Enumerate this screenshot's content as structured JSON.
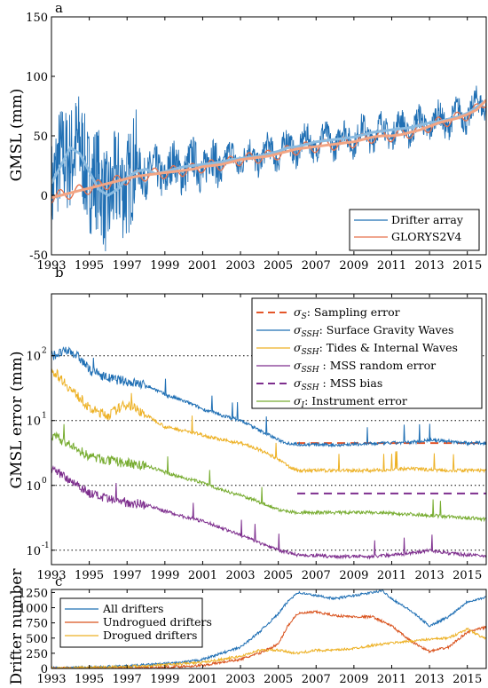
{
  "colors": {
    "drifter_blue": "#1f6fb4",
    "drifter_light": "#8bbbe0",
    "glorys_orange": "#e8704a",
    "glorys_light": "#f2a584",
    "sampling": "#e4562a",
    "ssh_waves": "#1f6fb4",
    "tides": "#edb125",
    "mss_random": "#7e2f8e",
    "mss_bias": "#7e2f8e",
    "instrument": "#77ac30",
    "all_drifters": "#1f6fb4",
    "undrogued": "#d9531e",
    "drogued": "#edb125"
  },
  "chart_data": [
    {
      "panel": "a",
      "type": "line",
      "ylabel": "GMSL (mm)",
      "xlim": [
        1993,
        2016
      ],
      "ylim": [
        -50,
        150
      ],
      "x_ticks": [
        "1993",
        "1995",
        "1997",
        "1999",
        "2001",
        "2003",
        "2005",
        "2007",
        "2009",
        "2011",
        "2013",
        "2015"
      ],
      "y_ticks": [
        "-50",
        "0",
        "50",
        "100",
        "150"
      ],
      "legend": [
        "Drifter array",
        "GLORYS2V4"
      ],
      "legend_position": "bottom-right",
      "series": [
        {
          "name": "Drifter array",
          "x": [
            1993.0,
            1993.5,
            1994.0,
            1994.5,
            1995.0,
            1995.5,
            1996.0,
            1996.5,
            1997.0,
            1997.5,
            1998.0,
            1998.5,
            1999.0,
            1999.5,
            2000.0,
            2000.5,
            2001.0,
            2001.5,
            2002.0,
            2002.5,
            2003.0,
            2003.5,
            2004.0,
            2004.5,
            2005.0,
            2005.5,
            2006.0,
            2006.5,
            2007.0,
            2007.5,
            2008.0,
            2008.5,
            2009.0,
            2009.5,
            2010.0,
            2010.5,
            2011.0,
            2011.5,
            2012.0,
            2012.5,
            2013.0,
            2013.5,
            2014.0,
            2014.5,
            2015.0,
            2015.5,
            2016.0
          ],
          "y": [
            10,
            25,
            40,
            35,
            20,
            5,
            0,
            5,
            15,
            20,
            22,
            18,
            20,
            22,
            24,
            25,
            26,
            27,
            28,
            30,
            31,
            32,
            33,
            35,
            37,
            40,
            41,
            43,
            45,
            46,
            47,
            48,
            49,
            51,
            53,
            54,
            55,
            56,
            57,
            59,
            61,
            62,
            64,
            66,
            69,
            74,
            80
          ]
        },
        {
          "name": "GLORYS2V4",
          "x": [
            1993.0,
            1993.5,
            1994.0,
            1994.5,
            1995.0,
            1995.5,
            1996.0,
            1996.5,
            1997.0,
            1997.5,
            1998.0,
            1998.5,
            1999.0,
            1999.5,
            2000.0,
            2000.5,
            2001.0,
            2001.5,
            2002.0,
            2002.5,
            2003.0,
            2003.5,
            2004.0,
            2004.5,
            2005.0,
            2005.5,
            2006.0,
            2006.5,
            2007.0,
            2007.5,
            2008.0,
            2008.5,
            2009.0,
            2009.5,
            2010.0,
            2010.5,
            2011.0,
            2011.5,
            2012.0,
            2012.5,
            2013.0,
            2013.5,
            2014.0,
            2014.5,
            2015.0,
            2015.5,
            2016.0
          ],
          "y": [
            -2,
            0,
            2,
            4,
            6,
            8,
            10,
            12,
            14,
            16,
            17,
            18,
            19,
            20,
            21,
            22,
            24,
            25,
            26,
            28,
            30,
            31,
            32,
            33,
            35,
            37,
            39,
            40,
            41,
            42,
            43,
            44,
            45,
            47,
            49,
            50,
            50,
            51,
            53,
            55,
            58,
            61,
            63,
            65,
            68,
            72,
            80
          ]
        }
      ]
    },
    {
      "panel": "b",
      "type": "line",
      "ylabel": "GMSL error (mm)",
      "yscale": "log",
      "xlim": [
        1993,
        2016
      ],
      "ylim": [
        0.06,
        900
      ],
      "x_ticks": [
        "1993",
        "1995",
        "1997",
        "1999",
        "2001",
        "2003",
        "2005",
        "2007",
        "2009",
        "2011",
        "2013",
        "2015"
      ],
      "y_ticks": [
        {
          "base": "10",
          "exp": "-1",
          "value": 0.1
        },
        {
          "base": "10",
          "exp": "0",
          "value": 1
        },
        {
          "base": "10",
          "exp": "1",
          "value": 10
        },
        {
          "base": "10",
          "exp": "2",
          "value": 100
        }
      ],
      "reference_lines": [
        0.1,
        1,
        10,
        100
      ],
      "legend": [
        {
          "sym": "σ",
          "sub": "S",
          "text": ": Sampling error"
        },
        {
          "sym": "σ",
          "sub": "SSH",
          "text": ": Surface Gravity Waves"
        },
        {
          "sym": "σ",
          "sub": "SSH",
          "text": ": Tides & Internal Waves"
        },
        {
          "sym": "σ",
          "sub": "SSH",
          "text": " : MSS random error"
        },
        {
          "sym": "σ",
          "sub": "SSH",
          "text": " : MSS bias"
        },
        {
          "sym": "σ",
          "sub": "I",
          "text": ": Instrument error"
        }
      ],
      "legend_position": "top-right",
      "series": [
        {
          "key": "sampling",
          "style": "dashed",
          "x": [
            2006,
            2016
          ],
          "y": [
            4.5,
            4.5
          ]
        },
        {
          "key": "ssh_waves",
          "x": [
            1993,
            1994,
            1995,
            1996,
            1997,
            1998,
            1999,
            2000,
            2001,
            2002,
            2003,
            2004,
            2005,
            2005.5,
            2006,
            2008,
            2010,
            2012,
            2013,
            2014,
            2015,
            2016
          ],
          "y": [
            100,
            120,
            60,
            45,
            40,
            35,
            25,
            20,
            15,
            12,
            10,
            7,
            5,
            4.5,
            4.3,
            4.2,
            4.4,
            4.6,
            5,
            4.8,
            4.5,
            4.5
          ]
        },
        {
          "key": "tides",
          "x": [
            1993,
            1994,
            1995,
            1996,
            1997,
            1998,
            1999,
            2000,
            2001,
            2002,
            2003,
            2004,
            2005,
            2005.5,
            2006,
            2008,
            2010,
            2012,
            2014,
            2016
          ],
          "y": [
            60,
            30,
            15,
            12,
            18,
            12,
            8,
            7,
            6,
            5,
            4.5,
            3.5,
            2.5,
            2.0,
            1.7,
            1.7,
            1.7,
            1.8,
            1.7,
            1.7
          ]
        },
        {
          "key": "instrument",
          "x": [
            1993,
            1994,
            1995,
            1996,
            1997,
            1998,
            1999,
            2000,
            2001,
            2002,
            2003,
            2004,
            2005,
            2006,
            2008,
            2010,
            2012,
            2014,
            2016
          ],
          "y": [
            6,
            4,
            2.8,
            2.4,
            2.2,
            2.0,
            1.6,
            1.3,
            1.1,
            0.85,
            0.7,
            0.55,
            0.42,
            0.38,
            0.38,
            0.38,
            0.36,
            0.33,
            0.3
          ]
        },
        {
          "key": "mss_random",
          "x": [
            1993,
            1994,
            1995,
            1996,
            1997,
            1998,
            1999,
            2000,
            2001,
            2002,
            2003,
            2004,
            2005,
            2006,
            2008,
            2010,
            2012,
            2013,
            2014,
            2016
          ],
          "y": [
            1.8,
            1.2,
            0.75,
            0.6,
            0.55,
            0.5,
            0.4,
            0.33,
            0.28,
            0.22,
            0.17,
            0.13,
            0.1,
            0.085,
            0.08,
            0.08,
            0.09,
            0.1,
            0.09,
            0.08
          ]
        },
        {
          "key": "mss_bias",
          "style": "dashed",
          "x": [
            2006,
            2016
          ],
          "y": [
            0.75,
            0.75
          ]
        }
      ]
    },
    {
      "panel": "c",
      "type": "line",
      "ylabel": "Drifter number",
      "xlim": [
        1993,
        2016
      ],
      "ylim": [
        0,
        1300
      ],
      "x_ticks": [
        "1993",
        "1995",
        "1997",
        "1999",
        "2001",
        "2003",
        "2005",
        "2007",
        "2009",
        "2011",
        "2013",
        "2015"
      ],
      "y_ticks": [
        "0",
        "250",
        "500",
        "750",
        "1000",
        "1250"
      ],
      "legend": [
        "All drifters",
        "Undrogued drifters",
        "Drogued drifters"
      ],
      "legend_position": "top-left",
      "series": [
        {
          "name": "All drifters",
          "x": [
            1993,
            1995,
            1997,
            1999,
            2000,
            2001,
            2002,
            2003,
            2004,
            2005,
            2005.5,
            2006,
            2007,
            2008,
            2009,
            2010,
            2010.5,
            2011,
            2012,
            2013,
            2014,
            2015,
            2016
          ],
          "y": [
            5,
            20,
            40,
            80,
            100,
            150,
            250,
            350,
            600,
            900,
            1100,
            1250,
            1200,
            1150,
            1200,
            1250,
            1280,
            1150,
            950,
            700,
            850,
            1100,
            1170
          ]
        },
        {
          "name": "Undrogued drifters",
          "x": [
            1993,
            1995,
            1997,
            1999,
            2001,
            2002,
            2003,
            2004,
            2005,
            2005.5,
            2006,
            2007,
            2008,
            2009,
            2010,
            2011,
            2012,
            2013,
            2014,
            2015,
            2016
          ],
          "y": [
            2,
            5,
            10,
            20,
            50,
            100,
            150,
            250,
            400,
            700,
            900,
            930,
            870,
            850,
            850,
            700,
            450,
            280,
            350,
            600,
            680
          ]
        },
        {
          "name": "Drogued drifters",
          "x": [
            1993,
            1995,
            1997,
            1999,
            2001,
            2002,
            2003,
            2004,
            2005,
            2006,
            2007,
            2008,
            2009,
            2010,
            2011,
            2012,
            2013,
            2014,
            2015,
            2016
          ],
          "y": [
            3,
            15,
            30,
            60,
            100,
            150,
            200,
            300,
            300,
            250,
            300,
            300,
            330,
            380,
            420,
            450,
            480,
            500,
            650,
            480
          ]
        }
      ]
    }
  ]
}
